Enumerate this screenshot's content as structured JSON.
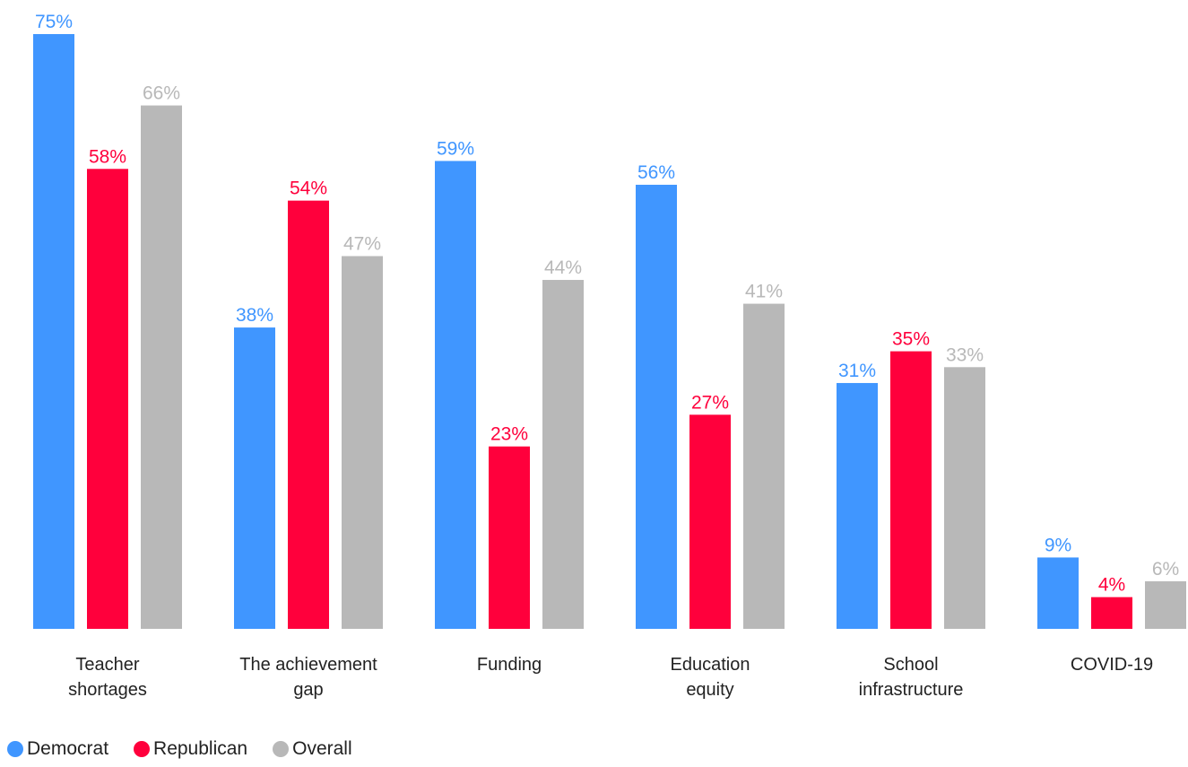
{
  "chart_data": {
    "type": "bar",
    "categories": [
      [
        "Teacher",
        "shortages"
      ],
      [
        "The achievement",
        "gap"
      ],
      [
        "Funding"
      ],
      [
        "Education",
        "equity"
      ],
      [
        "School",
        "infrastructure"
      ],
      [
        "COVID-19"
      ]
    ],
    "series": [
      {
        "name": "Democrat",
        "color": "#4096FF",
        "values": [
          75,
          38,
          59,
          56,
          31,
          9
        ]
      },
      {
        "name": "Republican",
        "color": "#FF003C",
        "values": [
          58,
          54,
          23,
          27,
          35,
          4
        ]
      },
      {
        "name": "Overall",
        "color": "#B8B8B8",
        "values": [
          66,
          47,
          44,
          41,
          33,
          6
        ]
      }
    ],
    "value_suffix": "%",
    "ylim": [
      0,
      75
    ],
    "grid": false,
    "legend_position": "bottom-left"
  }
}
